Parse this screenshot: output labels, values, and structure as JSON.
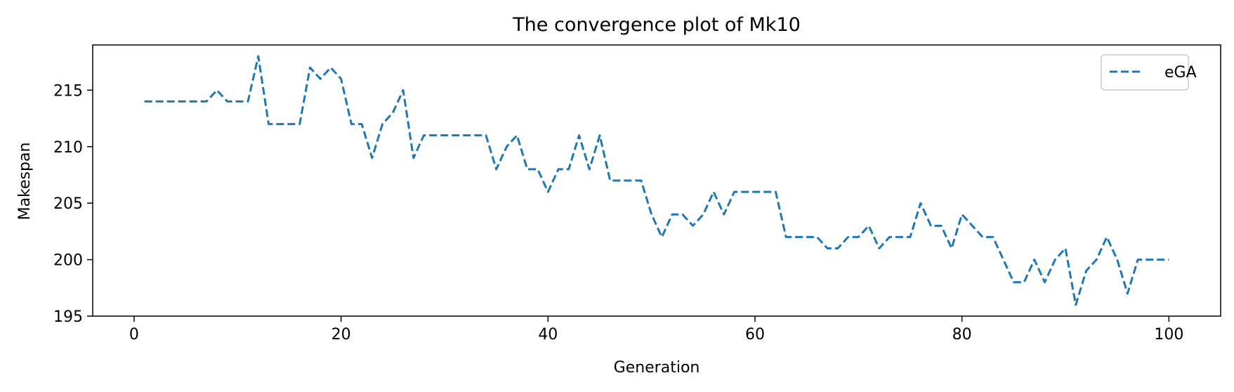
{
  "chart_data": {
    "type": "line",
    "title": "The convergence plot of Mk10",
    "xlabel": "Generation",
    "ylabel": "Makespan",
    "xlim": [
      -4,
      105
    ],
    "ylim": [
      195,
      219
    ],
    "xticks": [
      0,
      20,
      40,
      60,
      80,
      100
    ],
    "yticks": [
      195,
      200,
      205,
      210,
      215
    ],
    "grid": false,
    "legend_position": "top-right",
    "series": [
      {
        "name": "eGA",
        "color": "#1f77b4",
        "line_style": "dashed",
        "x": [
          1,
          2,
          3,
          4,
          5,
          6,
          7,
          8,
          9,
          10,
          11,
          12,
          13,
          14,
          15,
          16,
          17,
          18,
          19,
          20,
          21,
          22,
          23,
          24,
          25,
          26,
          27,
          28,
          29,
          30,
          31,
          32,
          33,
          34,
          35,
          36,
          37,
          38,
          39,
          40,
          41,
          42,
          43,
          44,
          45,
          46,
          47,
          48,
          49,
          50,
          51,
          52,
          53,
          54,
          55,
          56,
          57,
          58,
          59,
          60,
          61,
          62,
          63,
          64,
          65,
          66,
          67,
          68,
          69,
          70,
          71,
          72,
          73,
          74,
          75,
          76,
          77,
          78,
          79,
          80,
          81,
          82,
          83,
          84,
          85,
          86,
          87,
          88,
          89,
          90,
          91,
          92,
          93,
          94,
          95,
          96,
          97,
          98,
          99,
          100
        ],
        "values": [
          214,
          214,
          214,
          214,
          214,
          214,
          214,
          215,
          214,
          214,
          214,
          218,
          212,
          212,
          212,
          212,
          217,
          216,
          217,
          216,
          212,
          212,
          209,
          212,
          213,
          215,
          209,
          211,
          211,
          211,
          211,
          211,
          211,
          211,
          208,
          210,
          211,
          208,
          208,
          206,
          208,
          208,
          211,
          208,
          211,
          207,
          207,
          207,
          207,
          204,
          202,
          204,
          204,
          203,
          204,
          206,
          204,
          206,
          206,
          206,
          206,
          206,
          202,
          202,
          202,
          202,
          201,
          201,
          202,
          202,
          203,
          201,
          202,
          202,
          202,
          205,
          203,
          203,
          201,
          204,
          203,
          202,
          202,
          200,
          198,
          198,
          200,
          198,
          200,
          201,
          196,
          199,
          200,
          202,
          200,
          197,
          200,
          200,
          200,
          200
        ]
      }
    ]
  }
}
